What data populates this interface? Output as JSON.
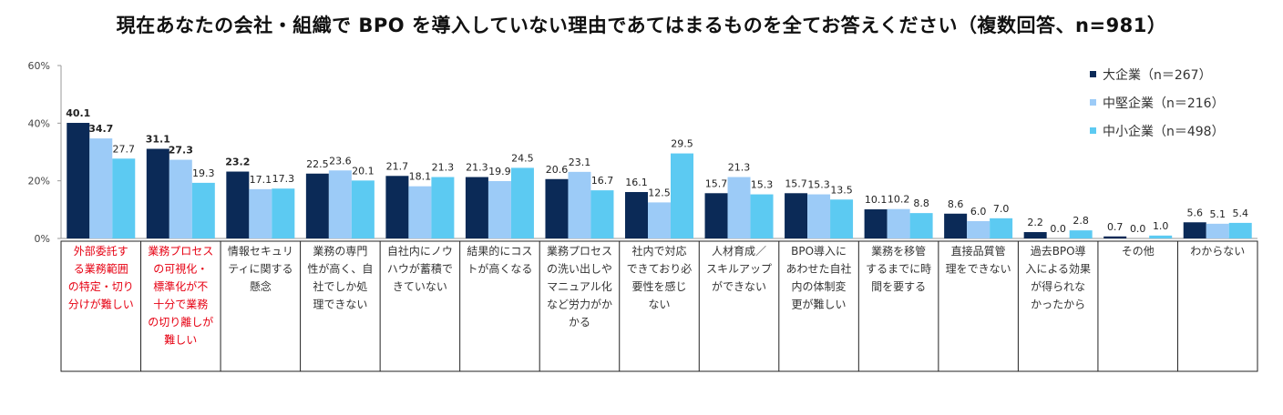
{
  "chart_data": {
    "type": "bar",
    "title": "現在あなたの会社・組織で BPO を導入していない理由であてはまるものを全てお答えください（複数回答、n=981）",
    "ylabel": "",
    "xlabel": "",
    "ylim": [
      0,
      60
    ],
    "yticks": [
      "0%",
      "20%",
      "40%",
      "60%"
    ],
    "categories": [
      [
        "外部委託す",
        "る業務範囲",
        "の特定・切り",
        "分けが難しい"
      ],
      [
        "業務プロセス",
        "の可視化・",
        "標準化が不",
        "十分で業務",
        "の切り離しが",
        "難しい"
      ],
      [
        "情報セキュリ",
        "ティに関する",
        "懸念"
      ],
      [
        "業務の専門",
        "性が高く、自",
        "社でしか処",
        "理できない"
      ],
      [
        "自社内にノウ",
        "ハウが蓄積で",
        "きていない"
      ],
      [
        "結果的にコス",
        "トが高くなる"
      ],
      [
        "業務プロセス",
        "の洗い出しや",
        "マニュアル化",
        "など労力がか",
        "かる"
      ],
      [
        "社内で対応",
        "できており必",
        "要性を感じ",
        "ない"
      ],
      [
        "人材育成／",
        "スキルアップ",
        "ができない"
      ],
      [
        "BPO導入に",
        "あわせた自社",
        "内の体制変",
        "更が難しい"
      ],
      [
        "業務を移管",
        "するまでに時",
        "間を要する"
      ],
      [
        "直接品質管",
        "理をできない"
      ],
      [
        "過去BPO導",
        "入による効果",
        "が得られな",
        "かったから"
      ],
      [
        "その他"
      ],
      [
        "わからない"
      ]
    ],
    "highlighted_categories": [
      0,
      1
    ],
    "series": [
      {
        "name": "大企業（n＝267）",
        "color": "#0b2a57",
        "values": [
          40.1,
          31.1,
          23.2,
          22.5,
          21.7,
          21.3,
          20.6,
          16.1,
          15.7,
          15.7,
          10.1,
          8.6,
          2.2,
          0.7,
          5.6
        ],
        "value_labels": [
          "40.1",
          "31.1",
          "23.2",
          "22.5",
          "21.7",
          "21.3",
          "20.6",
          "16.1",
          "15.7",
          "15.7",
          "10.1",
          "8.6",
          "2.2",
          "0.7",
          "5.6"
        ]
      },
      {
        "name": "中堅企業（n＝216）",
        "color": "#9ccbf7",
        "values": [
          34.7,
          27.3,
          17.1,
          23.6,
          18.1,
          19.9,
          23.1,
          12.5,
          21.3,
          15.3,
          10.2,
          6.0,
          0.0,
          0.0,
          5.1
        ],
        "value_labels": [
          "34.7",
          "27.3",
          "17.1",
          "23.6",
          "18.1",
          "19.9",
          "23.1",
          "12.5",
          "21.3",
          "15.3",
          "10.2",
          "6.0",
          "0.0",
          "0.0",
          "5.1"
        ]
      },
      {
        "name": "中小企業（n＝498）",
        "color": "#5ccaf2",
        "values": [
          27.7,
          19.3,
          17.3,
          20.1,
          21.3,
          24.5,
          16.7,
          29.5,
          15.3,
          13.5,
          8.8,
          7.0,
          2.8,
          1.0,
          5.4
        ],
        "value_labels": [
          "27.7",
          "19.3",
          "17.3",
          "20.1",
          "21.3",
          "24.5",
          "16.7",
          "29.5",
          "15.3",
          "13.5",
          "8.8",
          "7.0",
          "2.8",
          "1.0",
          "5.4"
        ]
      }
    ],
    "bold_labels": [
      [
        0,
        0
      ],
      [
        0,
        1
      ],
      [
        0,
        2
      ],
      [
        1,
        0
      ],
      [
        1,
        1
      ],
      [
        5,
        2
      ],
      [
        7,
        2
      ]
    ],
    "legend_position": "top-right"
  }
}
